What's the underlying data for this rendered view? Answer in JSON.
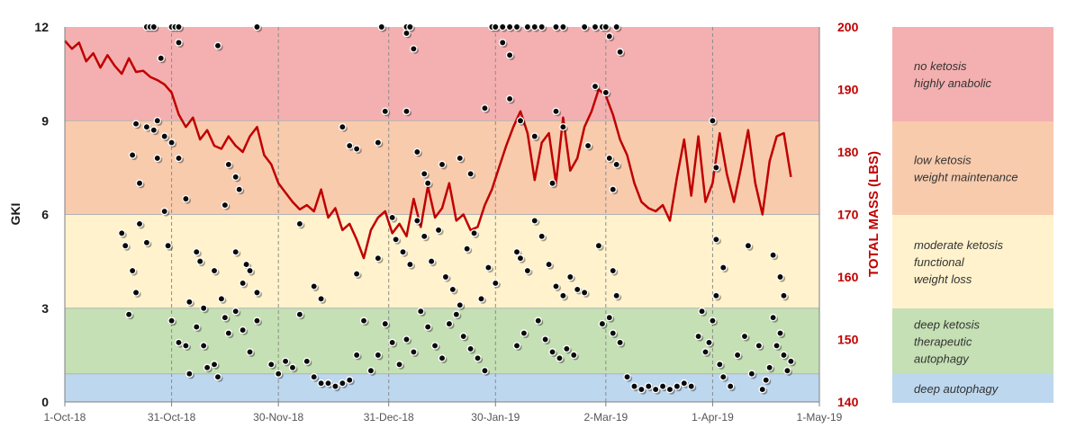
{
  "chart_data": {
    "type": "scatter",
    "left_axis": {
      "label": "GKI",
      "ylim": [
        0,
        12
      ],
      "ticks": [
        0,
        3,
        6,
        9,
        12
      ],
      "tick_labels": [
        "0",
        "3",
        "6",
        "9",
        "12"
      ],
      "color": "#1a1a1a"
    },
    "right_axis": {
      "label": "TOTAL MASS (LBS)",
      "ylim": [
        140,
        200
      ],
      "ticks": [
        140,
        150,
        160,
        170,
        180,
        190,
        200
      ],
      "tick_labels": [
        "140",
        "150",
        "160",
        "170",
        "180",
        "190",
        "200"
      ],
      "color": "#c00000"
    },
    "x_axis": {
      "start": "2018-10-01",
      "end": "2019-05-01",
      "tick_dates": [
        "2018-10-01",
        "2018-10-31",
        "2018-11-30",
        "2018-12-31",
        "2019-01-30",
        "2019-03-02",
        "2019-04-01",
        "2019-05-01"
      ],
      "tick_labels": [
        "1-Oct-18",
        "31-Oct-18",
        "30-Nov-18",
        "31-Dec-18",
        "30-Jan-19",
        "2-Mar-19",
        "1-Apr-19",
        "1-May-19"
      ]
    },
    "zones": [
      {
        "from": 0,
        "to": 0.9,
        "color": "#bdd7ee",
        "lines": [
          "deep autophagy"
        ]
      },
      {
        "from": 0.9,
        "to": 3,
        "color": "#c5e0b4",
        "lines": [
          "deep ketosis",
          "therapeutic",
          "autophagy"
        ]
      },
      {
        "from": 3,
        "to": 6,
        "color": "#fff2cc",
        "lines": [
          "moderate ketosis",
          "functional",
          "weight loss"
        ]
      },
      {
        "from": 6,
        "to": 9,
        "color": "#f8cbad",
        "lines": [
          "low ketosis",
          "weight maintenance"
        ]
      },
      {
        "from": 9,
        "to": 12,
        "color": "#f4b0b0",
        "lines": [
          "no ketosis",
          "highly anabolic"
        ]
      }
    ],
    "mass_series_color": "#c00000",
    "mass_series": [
      [
        "2018-10-01",
        197.8
      ],
      [
        "2018-10-03",
        196.5
      ],
      [
        "2018-10-05",
        197.5
      ],
      [
        "2018-10-07",
        194.5
      ],
      [
        "2018-10-09",
        195.8
      ],
      [
        "2018-10-11",
        193.5
      ],
      [
        "2018-10-13",
        195.5
      ],
      [
        "2018-10-15",
        193.8
      ],
      [
        "2018-10-17",
        192.5
      ],
      [
        "2018-10-19",
        195.0
      ],
      [
        "2018-10-21",
        192.8
      ],
      [
        "2018-10-23",
        193.0
      ],
      [
        "2018-10-25",
        192.0
      ],
      [
        "2018-10-27",
        191.5
      ],
      [
        "2018-10-29",
        190.8
      ],
      [
        "2018-10-31",
        189.5
      ],
      [
        "2018-11-02",
        186.0
      ],
      [
        "2018-11-04",
        184.0
      ],
      [
        "2018-11-06",
        185.5
      ],
      [
        "2018-11-08",
        182.0
      ],
      [
        "2018-11-10",
        183.5
      ],
      [
        "2018-11-12",
        181.0
      ],
      [
        "2018-11-14",
        180.5
      ],
      [
        "2018-11-16",
        182.5
      ],
      [
        "2018-11-18",
        181.0
      ],
      [
        "2018-11-20",
        180.0
      ],
      [
        "2018-11-22",
        182.5
      ],
      [
        "2018-11-24",
        184.0
      ],
      [
        "2018-11-26",
        179.5
      ],
      [
        "2018-11-28",
        178.0
      ],
      [
        "2018-11-30",
        175.0
      ],
      [
        "2018-12-02",
        173.5
      ],
      [
        "2018-12-04",
        172.0
      ],
      [
        "2018-12-06",
        170.8
      ],
      [
        "2018-12-08",
        171.5
      ],
      [
        "2018-12-10",
        170.5
      ],
      [
        "2018-12-12",
        174.0
      ],
      [
        "2018-12-14",
        169.5
      ],
      [
        "2018-12-16",
        171.0
      ],
      [
        "2018-12-18",
        167.5
      ],
      [
        "2018-12-20",
        168.5
      ],
      [
        "2018-12-22",
        166.0
      ],
      [
        "2018-12-24",
        163.0
      ],
      [
        "2018-12-26",
        167.5
      ],
      [
        "2018-12-28",
        169.5
      ],
      [
        "2018-12-30",
        170.5
      ],
      [
        "2019-01-01",
        167.0
      ],
      [
        "2019-01-03",
        168.5
      ],
      [
        "2019-01-05",
        166.5
      ],
      [
        "2019-01-07",
        172.5
      ],
      [
        "2019-01-09",
        168.0
      ],
      [
        "2019-01-11",
        174.5
      ],
      [
        "2019-01-13",
        169.5
      ],
      [
        "2019-01-15",
        171.0
      ],
      [
        "2019-01-17",
        175.0
      ],
      [
        "2019-01-19",
        169.0
      ],
      [
        "2019-01-21",
        170.0
      ],
      [
        "2019-01-23",
        167.5
      ],
      [
        "2019-01-25",
        168.0
      ],
      [
        "2019-01-27",
        171.5
      ],
      [
        "2019-01-29",
        174.0
      ],
      [
        "2019-01-31",
        177.5
      ],
      [
        "2019-02-02",
        181.0
      ],
      [
        "2019-02-04",
        184.0
      ],
      [
        "2019-02-06",
        186.5
      ],
      [
        "2019-02-08",
        183.0
      ],
      [
        "2019-02-10",
        175.5
      ],
      [
        "2019-02-12",
        181.5
      ],
      [
        "2019-02-14",
        183.0
      ],
      [
        "2019-02-16",
        175.0
      ],
      [
        "2019-02-18",
        185.5
      ],
      [
        "2019-02-20",
        177.0
      ],
      [
        "2019-02-22",
        179.0
      ],
      [
        "2019-02-24",
        184.0
      ],
      [
        "2019-02-26",
        186.5
      ],
      [
        "2019-02-28",
        190.0
      ],
      [
        "2019-03-02",
        189.0
      ],
      [
        "2019-03-04",
        186.0
      ],
      [
        "2019-03-06",
        182.0
      ],
      [
        "2019-03-08",
        179.5
      ],
      [
        "2019-03-10",
        175.0
      ],
      [
        "2019-03-12",
        172.0
      ],
      [
        "2019-03-14",
        171.0
      ],
      [
        "2019-03-16",
        170.5
      ],
      [
        "2019-03-18",
        171.5
      ],
      [
        "2019-03-20",
        169.0
      ],
      [
        "2019-03-22",
        176.0
      ],
      [
        "2019-03-24",
        182.0
      ],
      [
        "2019-03-26",
        173.0
      ],
      [
        "2019-03-28",
        182.5
      ],
      [
        "2019-03-30",
        172.0
      ],
      [
        "2019-04-01",
        175.0
      ],
      [
        "2019-04-03",
        183.0
      ],
      [
        "2019-04-05",
        176.5
      ],
      [
        "2019-04-07",
        172.0
      ],
      [
        "2019-04-09",
        177.5
      ],
      [
        "2019-04-11",
        183.5
      ],
      [
        "2019-04-13",
        175.0
      ],
      [
        "2019-04-15",
        170.0
      ],
      [
        "2019-04-17",
        178.5
      ],
      [
        "2019-04-19",
        182.5
      ],
      [
        "2019-04-21",
        183.0
      ],
      [
        "2019-04-23",
        176.0
      ]
    ],
    "gki_points": [
      [
        "2018-10-24",
        12.0
      ],
      [
        "2018-10-25",
        12.0
      ],
      [
        "2018-10-26",
        12.0
      ],
      [
        "2018-10-31",
        12.0
      ],
      [
        "2018-11-01",
        12.0
      ],
      [
        "2018-11-02",
        12.0
      ],
      [
        "2018-12-29",
        12.0
      ],
      [
        "2019-01-05",
        12.0
      ],
      [
        "2019-01-06",
        12.0
      ],
      [
        "2019-01-29",
        12.0
      ],
      [
        "2019-01-30",
        12.0
      ],
      [
        "2019-02-01",
        12.0
      ],
      [
        "2019-02-03",
        12.0
      ],
      [
        "2019-02-05",
        12.0
      ],
      [
        "2019-02-08",
        12.0
      ],
      [
        "2019-02-10",
        12.0
      ],
      [
        "2019-02-12",
        12.0
      ],
      [
        "2019-02-16",
        12.0
      ],
      [
        "2019-02-18",
        12.0
      ],
      [
        "2019-02-24",
        12.0
      ],
      [
        "2019-02-27",
        12.0
      ],
      [
        "2019-03-01",
        12.0
      ],
      [
        "2019-03-02",
        12.0
      ],
      [
        "2019-03-05",
        12.0
      ],
      [
        "2018-11-24",
        12.0
      ],
      [
        "2018-11-13",
        11.4
      ],
      [
        "2018-10-28",
        11.0
      ],
      [
        "2018-11-02",
        11.5
      ],
      [
        "2019-01-07",
        11.3
      ],
      [
        "2019-01-05",
        11.8
      ],
      [
        "2019-02-01",
        11.5
      ],
      [
        "2019-02-03",
        11.1
      ],
      [
        "2019-03-03",
        11.7
      ],
      [
        "2019-03-06",
        11.2
      ],
      [
        "2018-10-21",
        8.9
      ],
      [
        "2018-10-24",
        8.8
      ],
      [
        "2018-10-26",
        8.7
      ],
      [
        "2018-10-27",
        9.0
      ],
      [
        "2018-10-29",
        8.5
      ],
      [
        "2018-10-31",
        8.3
      ],
      [
        "2018-10-20",
        7.9
      ],
      [
        "2018-10-22",
        7.0
      ],
      [
        "2018-10-27",
        7.8
      ],
      [
        "2018-11-02",
        7.8
      ],
      [
        "2018-11-04",
        6.5
      ],
      [
        "2018-10-29",
        6.1
      ],
      [
        "2018-11-16",
        7.6
      ],
      [
        "2018-11-18",
        7.2
      ],
      [
        "2018-11-19",
        6.8
      ],
      [
        "2018-11-15",
        6.3
      ],
      [
        "2018-12-18",
        8.8
      ],
      [
        "2018-12-20",
        8.2
      ],
      [
        "2018-12-22",
        8.1
      ],
      [
        "2018-12-28",
        8.3
      ],
      [
        "2018-12-30",
        9.3
      ],
      [
        "2019-01-05",
        9.3
      ],
      [
        "2019-01-08",
        8.0
      ],
      [
        "2019-01-10",
        7.3
      ],
      [
        "2019-01-11",
        7.0
      ],
      [
        "2019-01-15",
        7.6
      ],
      [
        "2019-01-20",
        7.8
      ],
      [
        "2019-01-23",
        7.3
      ],
      [
        "2019-01-27",
        9.4
      ],
      [
        "2019-02-03",
        9.7
      ],
      [
        "2019-02-06",
        9.0
      ],
      [
        "2019-02-10",
        8.5
      ],
      [
        "2019-02-15",
        7.0
      ],
      [
        "2019-02-16",
        9.3
      ],
      [
        "2019-02-18",
        8.8
      ],
      [
        "2019-02-25",
        8.2
      ],
      [
        "2019-02-27",
        10.1
      ],
      [
        "2019-03-02",
        9.9
      ],
      [
        "2019-03-03",
        7.8
      ],
      [
        "2019-03-05",
        7.6
      ],
      [
        "2019-03-04",
        6.8
      ],
      [
        "2019-04-01",
        9.0
      ],
      [
        "2019-04-02",
        7.5
      ],
      [
        "2018-10-17",
        5.4
      ],
      [
        "2018-10-18",
        5.0
      ],
      [
        "2018-10-20",
        4.2
      ],
      [
        "2018-10-21",
        3.5
      ],
      [
        "2018-10-19",
        2.8
      ],
      [
        "2018-10-22",
        5.7
      ],
      [
        "2018-10-24",
        5.1
      ],
      [
        "2018-10-30",
        5.0
      ],
      [
        "2018-11-07",
        4.8
      ],
      [
        "2018-11-08",
        4.5
      ],
      [
        "2018-11-12",
        4.2
      ],
      [
        "2018-11-18",
        4.8
      ],
      [
        "2018-11-21",
        4.4
      ],
      [
        "2018-11-22",
        4.2
      ],
      [
        "2018-11-24",
        3.5
      ],
      [
        "2018-11-20",
        3.8
      ],
      [
        "2018-11-05",
        3.2
      ],
      [
        "2018-11-09",
        3.0
      ],
      [
        "2018-11-14",
        3.3
      ],
      [
        "2018-12-06",
        5.7
      ],
      [
        "2018-12-10",
        3.7
      ],
      [
        "2018-12-12",
        3.3
      ],
      [
        "2018-12-22",
        4.1
      ],
      [
        "2018-12-28",
        4.6
      ],
      [
        "2019-01-01",
        5.9
      ],
      [
        "2019-01-02",
        5.2
      ],
      [
        "2019-01-04",
        4.8
      ],
      [
        "2019-01-06",
        4.4
      ],
      [
        "2019-01-08",
        5.8
      ],
      [
        "2019-01-10",
        5.3
      ],
      [
        "2019-01-12",
        4.5
      ],
      [
        "2019-01-14",
        5.5
      ],
      [
        "2019-01-16",
        4.0
      ],
      [
        "2019-01-18",
        3.6
      ],
      [
        "2019-01-20",
        3.1
      ],
      [
        "2019-01-22",
        4.9
      ],
      [
        "2019-01-24",
        5.4
      ],
      [
        "2019-01-26",
        3.3
      ],
      [
        "2019-01-28",
        4.3
      ],
      [
        "2019-01-30",
        3.8
      ],
      [
        "2019-02-05",
        4.8
      ],
      [
        "2019-02-06",
        4.6
      ],
      [
        "2019-02-08",
        4.2
      ],
      [
        "2019-02-10",
        5.8
      ],
      [
        "2019-02-12",
        5.3
      ],
      [
        "2019-02-14",
        4.4
      ],
      [
        "2019-02-16",
        3.7
      ],
      [
        "2019-02-18",
        3.4
      ],
      [
        "2019-02-20",
        4.0
      ],
      [
        "2019-02-22",
        3.6
      ],
      [
        "2019-02-24",
        3.5
      ],
      [
        "2019-02-28",
        5.0
      ],
      [
        "2019-03-04",
        4.2
      ],
      [
        "2019-03-05",
        3.4
      ],
      [
        "2019-03-03",
        2.7
      ],
      [
        "2019-04-02",
        5.2
      ],
      [
        "2019-04-04",
        4.3
      ],
      [
        "2019-04-11",
        5.0
      ],
      [
        "2019-04-18",
        4.7
      ],
      [
        "2019-04-20",
        4.0
      ],
      [
        "2019-04-21",
        3.4
      ],
      [
        "2018-10-31",
        2.6
      ],
      [
        "2018-11-02",
        1.9
      ],
      [
        "2018-11-04",
        1.8
      ],
      [
        "2018-11-05",
        0.9
      ],
      [
        "2018-11-07",
        2.4
      ],
      [
        "2018-11-09",
        1.8
      ],
      [
        "2018-11-10",
        1.1
      ],
      [
        "2018-11-12",
        1.2
      ],
      [
        "2018-11-13",
        0.8
      ],
      [
        "2018-11-15",
        2.7
      ],
      [
        "2018-11-16",
        2.2
      ],
      [
        "2018-11-18",
        2.9
      ],
      [
        "2018-11-20",
        2.3
      ],
      [
        "2018-11-22",
        1.6
      ],
      [
        "2018-11-24",
        2.6
      ],
      [
        "2018-11-28",
        1.2
      ],
      [
        "2018-11-30",
        0.9
      ],
      [
        "2018-12-02",
        1.3
      ],
      [
        "2018-12-04",
        1.1
      ],
      [
        "2018-12-06",
        2.8
      ],
      [
        "2018-12-08",
        1.3
      ],
      [
        "2018-12-10",
        0.8
      ],
      [
        "2018-12-12",
        0.6
      ],
      [
        "2018-12-14",
        0.6
      ],
      [
        "2018-12-16",
        0.5
      ],
      [
        "2018-12-18",
        0.6
      ],
      [
        "2018-12-20",
        0.7
      ],
      [
        "2018-12-22",
        1.5
      ],
      [
        "2018-12-24",
        2.6
      ],
      [
        "2018-12-26",
        1.0
      ],
      [
        "2018-12-28",
        1.5
      ],
      [
        "2018-12-30",
        2.5
      ],
      [
        "2019-01-01",
        1.9
      ],
      [
        "2019-01-03",
        1.2
      ],
      [
        "2019-01-05",
        2.0
      ],
      [
        "2019-01-07",
        1.6
      ],
      [
        "2019-01-09",
        2.9
      ],
      [
        "2019-01-11",
        2.4
      ],
      [
        "2019-01-13",
        1.8
      ],
      [
        "2019-01-15",
        1.4
      ],
      [
        "2019-01-17",
        2.5
      ],
      [
        "2019-01-19",
        2.8
      ],
      [
        "2019-01-21",
        2.1
      ],
      [
        "2019-01-23",
        1.7
      ],
      [
        "2019-01-25",
        1.4
      ],
      [
        "2019-01-27",
        1.0
      ],
      [
        "2019-02-05",
        1.8
      ],
      [
        "2019-02-07",
        2.2
      ],
      [
        "2019-02-11",
        2.6
      ],
      [
        "2019-02-13",
        2.0
      ],
      [
        "2019-02-15",
        1.6
      ],
      [
        "2019-02-17",
        1.4
      ],
      [
        "2019-02-19",
        1.7
      ],
      [
        "2019-02-21",
        1.5
      ],
      [
        "2019-03-01",
        2.5
      ],
      [
        "2019-03-04",
        2.2
      ],
      [
        "2019-03-06",
        1.9
      ],
      [
        "2019-03-08",
        0.8
      ],
      [
        "2019-03-10",
        0.5
      ],
      [
        "2019-03-12",
        0.4
      ],
      [
        "2019-03-14",
        0.5
      ],
      [
        "2019-03-16",
        0.4
      ],
      [
        "2019-03-18",
        0.5
      ],
      [
        "2019-03-20",
        0.4
      ],
      [
        "2019-03-22",
        0.5
      ],
      [
        "2019-03-24",
        0.6
      ],
      [
        "2019-03-26",
        0.5
      ],
      [
        "2019-03-28",
        2.1
      ],
      [
        "2019-03-29",
        2.9
      ],
      [
        "2019-03-30",
        1.6
      ],
      [
        "2019-03-31",
        1.9
      ],
      [
        "2019-04-01",
        2.6
      ],
      [
        "2019-04-02",
        3.4
      ],
      [
        "2019-04-03",
        1.2
      ],
      [
        "2019-04-04",
        0.8
      ],
      [
        "2019-04-06",
        0.5
      ],
      [
        "2019-04-08",
        1.5
      ],
      [
        "2019-04-10",
        2.1
      ],
      [
        "2019-04-12",
        0.9
      ],
      [
        "2019-04-14",
        1.8
      ],
      [
        "2019-04-15",
        0.4
      ],
      [
        "2019-04-16",
        0.7
      ],
      [
        "2019-04-17",
        1.1
      ],
      [
        "2019-04-18",
        2.7
      ],
      [
        "2019-04-19",
        1.8
      ],
      [
        "2019-04-20",
        2.2
      ],
      [
        "2019-04-21",
        1.5
      ],
      [
        "2019-04-22",
        1.0
      ],
      [
        "2019-04-23",
        1.3
      ]
    ]
  }
}
